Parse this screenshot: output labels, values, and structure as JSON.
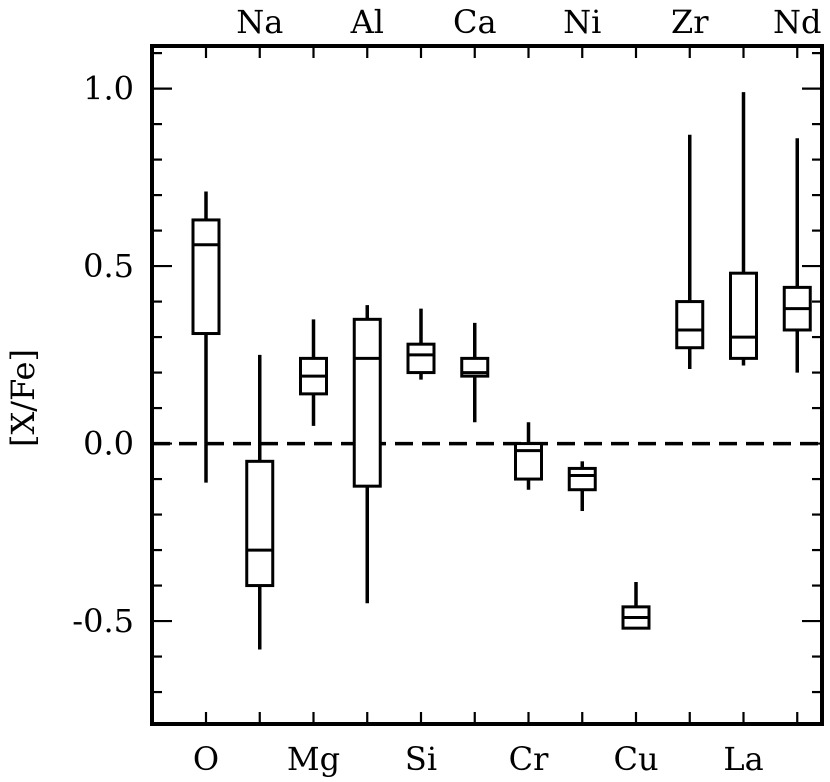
{
  "chart_data": {
    "type": "box",
    "ylabel": "[X/Fe]",
    "ylim": [
      -0.79,
      1.12
    ],
    "y_ticks": [
      "1.0",
      "0.5",
      "0.0",
      "-0.5"
    ],
    "y_tick_values": [
      1.0,
      0.5,
      0.0,
      -0.5
    ],
    "reference_line": {
      "y": 0.0,
      "style": "dashed"
    },
    "bottom_axis_labels": [
      "O",
      "Mg",
      "Si",
      "Cr",
      "Cu",
      "La"
    ],
    "top_axis_labels": [
      "Na",
      "Al",
      "Ca",
      "Ni",
      "Zr",
      "Nd"
    ],
    "elements": [
      {
        "element": "O",
        "axis": "bottom",
        "min": -0.11,
        "q1": 0.31,
        "median": 0.56,
        "q3": 0.63,
        "max": 0.71
      },
      {
        "element": "Na",
        "axis": "top",
        "min": -0.58,
        "q1": -0.4,
        "median": -0.3,
        "q3": -0.05,
        "max": 0.25
      },
      {
        "element": "Mg",
        "axis": "bottom",
        "min": 0.05,
        "q1": 0.14,
        "median": 0.19,
        "q3": 0.24,
        "max": 0.35
      },
      {
        "element": "Al",
        "axis": "top",
        "min": -0.45,
        "q1": -0.12,
        "median": 0.24,
        "q3": 0.35,
        "max": 0.39
      },
      {
        "element": "Si",
        "axis": "bottom",
        "min": 0.18,
        "q1": 0.2,
        "median": 0.25,
        "q3": 0.28,
        "max": 0.38
      },
      {
        "element": "Ca",
        "axis": "top",
        "min": 0.06,
        "q1": 0.19,
        "median": 0.2,
        "q3": 0.24,
        "max": 0.34
      },
      {
        "element": "Cr",
        "axis": "bottom",
        "min": -0.13,
        "q1": -0.1,
        "median": -0.02,
        "q3": 0.0,
        "max": 0.06
      },
      {
        "element": "Ni",
        "axis": "top",
        "min": -0.19,
        "q1": -0.13,
        "median": -0.09,
        "q3": -0.07,
        "max": -0.05
      },
      {
        "element": "Cu",
        "axis": "bottom",
        "min": -0.52,
        "q1": -0.52,
        "median": -0.49,
        "q3": -0.46,
        "max": -0.39
      },
      {
        "element": "Zr",
        "axis": "top",
        "min": 0.21,
        "q1": 0.27,
        "median": 0.32,
        "q3": 0.4,
        "max": 0.87
      },
      {
        "element": "La",
        "axis": "bottom",
        "min": 0.22,
        "q1": 0.24,
        "median": 0.3,
        "q3": 0.48,
        "max": 0.99
      },
      {
        "element": "Nd",
        "axis": "top",
        "min": 0.2,
        "q1": 0.32,
        "median": 0.38,
        "q3": 0.44,
        "max": 0.86
      }
    ]
  }
}
